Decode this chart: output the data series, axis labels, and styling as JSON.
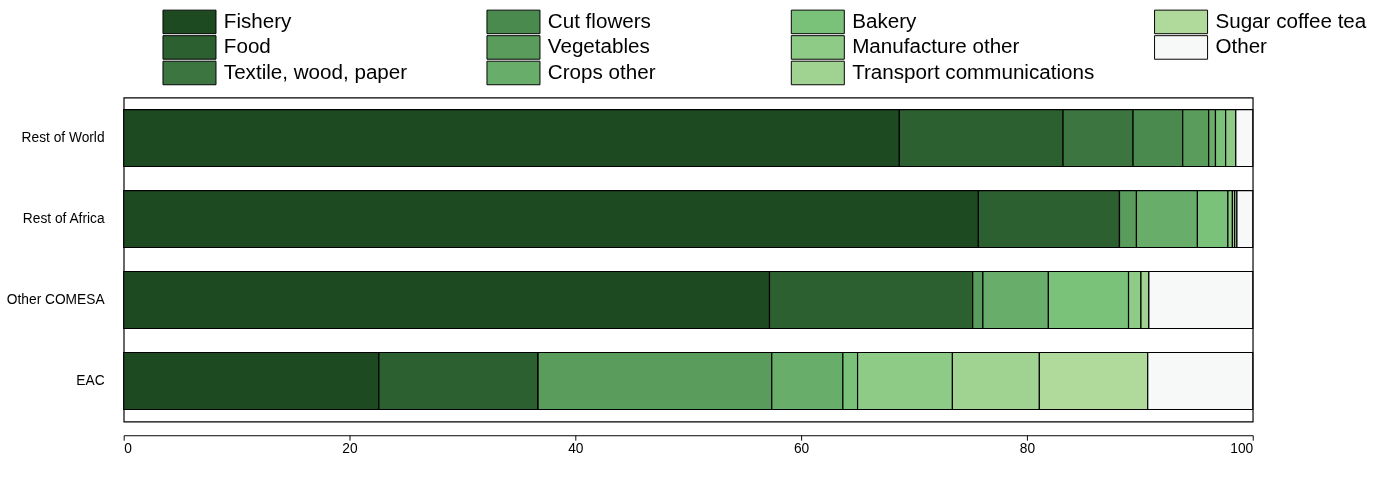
{
  "chart_data": {
    "type": "bar",
    "orientation": "horizontal",
    "stacked": true,
    "categories": [
      "Rest of World",
      "Rest of Africa",
      "Other COMESA",
      "EAC"
    ],
    "series": [
      {
        "name": "Fishery",
        "color": "#1e4a22",
        "values": [
          68.7,
          75.7,
          57.2,
          22.6
        ]
      },
      {
        "name": "Food",
        "color": "#2c6030",
        "values": [
          14.5,
          12.5,
          18.0,
          14.1
        ]
      },
      {
        "name": "Textile, wood, paper",
        "color": "#3c7540",
        "values": [
          6.2,
          0,
          0,
          0
        ]
      },
      {
        "name": "Cut flowers",
        "color": "#4a8a4e",
        "values": [
          4.4,
          0,
          0,
          0
        ]
      },
      {
        "name": "Vegetables",
        "color": "#5a9c5c",
        "values": [
          2.3,
          1.5,
          0.9,
          20.7
        ]
      },
      {
        "name": "Crops other",
        "color": "#68ae6a",
        "values": [
          0.6,
          5.4,
          5.8,
          6.3
        ]
      },
      {
        "name": "Bakery",
        "color": "#7ac27a",
        "values": [
          0.9,
          2.7,
          7.1,
          1.3
        ]
      },
      {
        "name": "Manufacture other",
        "color": "#8ecb86",
        "values": [
          0.9,
          0.4,
          1.1,
          8.4
        ]
      },
      {
        "name": "Transport communications",
        "color": "#a0d292",
        "values": [
          null,
          0.2,
          0.7,
          7.7
        ]
      },
      {
        "name": "Sugar coffee tea",
        "color": "#b0da9c",
        "values": [
          0,
          0.2,
          0,
          9.6
        ]
      },
      {
        "name": "Other",
        "color": "#f7f9f8",
        "values": [
          1.5,
          1.4,
          9.2,
          9.3
        ]
      }
    ],
    "xlim": [
      0,
      100
    ],
    "xticks": [
      0,
      20,
      40,
      60,
      80,
      100
    ],
    "grid": false,
    "legend": "top"
  }
}
